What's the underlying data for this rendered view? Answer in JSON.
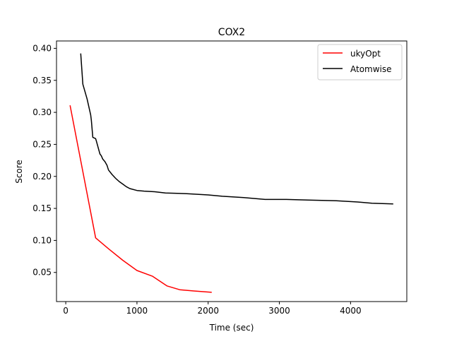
{
  "chart_data": {
    "type": "line",
    "title": "COX2",
    "xlabel": "Time (sec)",
    "ylabel": "Score",
    "xlim": [
      -130,
      4790
    ],
    "ylim": [
      0.0045,
      0.4115
    ],
    "xticks": [
      0,
      1000,
      2000,
      3000,
      4000
    ],
    "yticks": [
      0.05,
      0.1,
      0.15,
      0.2,
      0.25,
      0.3,
      0.35,
      0.4
    ],
    "xtick_labels": [
      "0",
      "1000",
      "2000",
      "3000",
      "4000"
    ],
    "ytick_labels": [
      "0.05",
      "0.10",
      "0.15",
      "0.20",
      "0.25",
      "0.30",
      "0.35",
      "0.40"
    ],
    "grid": false,
    "legend_position": "top-right",
    "series": [
      {
        "name": "ukyOpt",
        "color": "#ff0000",
        "x": [
          60,
          420,
          600,
          800,
          1000,
          1220,
          1420,
          1600,
          1800,
          2050
        ],
        "y": [
          0.311,
          0.104,
          0.087,
          0.069,
          0.053,
          0.044,
          0.029,
          0.023,
          0.021,
          0.019
        ]
      },
      {
        "name": "Atomwise",
        "color": "#000000",
        "x": [
          210,
          240,
          300,
          350,
          360,
          380,
          420,
          430,
          460,
          480,
          500,
          520,
          550,
          580,
          600,
          650,
          700,
          750,
          800,
          850,
          900,
          1000,
          1100,
          1250,
          1400,
          1700,
          2000,
          2200,
          2500,
          2800,
          3100,
          3400,
          3800,
          4100,
          4300,
          4600
        ],
        "y": [
          0.392,
          0.344,
          0.321,
          0.296,
          0.287,
          0.261,
          0.259,
          0.255,
          0.243,
          0.235,
          0.232,
          0.227,
          0.223,
          0.217,
          0.21,
          0.203,
          0.197,
          0.192,
          0.188,
          0.184,
          0.181,
          0.178,
          0.177,
          0.176,
          0.174,
          0.173,
          0.171,
          0.169,
          0.167,
          0.164,
          0.164,
          0.163,
          0.162,
          0.16,
          0.158,
          0.157
        ]
      }
    ]
  }
}
